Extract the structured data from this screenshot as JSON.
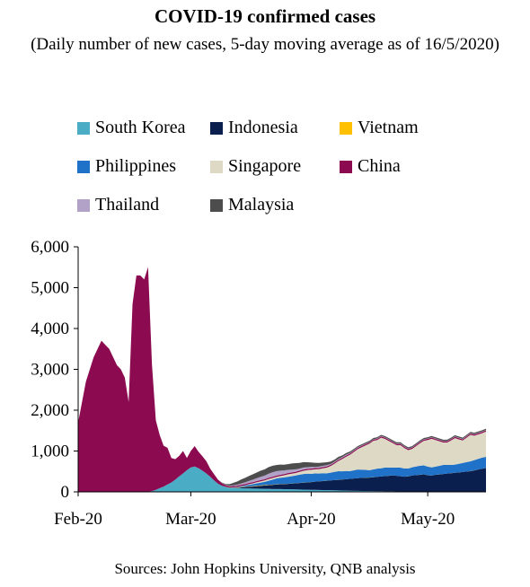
{
  "title": "COVID-19 confirmed cases",
  "subtitle": "(Daily number of new cases, 5-day moving average as of 16/5/2020)",
  "source": "Sources: John Hopkins University, QNB analysis",
  "chart_data": {
    "type": "area",
    "stacked": true,
    "ylim": [
      0,
      6000
    ],
    "yticks": [
      0,
      1000,
      2000,
      3000,
      4000,
      5000,
      6000
    ],
    "ytick_labels": [
      "0",
      "1,000",
      "2,000",
      "3,000",
      "4,000",
      "5,000",
      "6,000"
    ],
    "xtick_labels": [
      "Feb-20",
      "Mar-20",
      "Apr-20",
      "May-20"
    ],
    "xtick_positions": [
      0,
      29,
      60,
      90
    ],
    "x_start": 0,
    "x_end": 105,
    "legend_position": "top",
    "series": [
      {
        "name": "South Korea",
        "color": "#4bacc6",
        "values": [
          0,
          0,
          0,
          0,
          0,
          0,
          0,
          0,
          0,
          0,
          0,
          0,
          0,
          0,
          0,
          0,
          0,
          0,
          5,
          20,
          50,
          90,
          130,
          180,
          230,
          300,
          380,
          450,
          530,
          600,
          620,
          580,
          520,
          450,
          370,
          280,
          200,
          150,
          120,
          100,
          95,
          90,
          90,
          85,
          85,
          80,
          80,
          78,
          75,
          75,
          70,
          70,
          68,
          65,
          65,
          62,
          60,
          58,
          55,
          52,
          50,
          50,
          48,
          45,
          43,
          40,
          38,
          35,
          33,
          30,
          28,
          26,
          25,
          23,
          22,
          20,
          18,
          17,
          16,
          15,
          14,
          13,
          12,
          12,
          11,
          10,
          10,
          9,
          9,
          8,
          8,
          8,
          7,
          7,
          7,
          7,
          7,
          6,
          6,
          6,
          6,
          6,
          6,
          6,
          6,
          6
        ]
      },
      {
        "name": "Indonesia",
        "color": "#0b1f4f",
        "values": [
          0,
          0,
          0,
          0,
          0,
          0,
          0,
          0,
          0,
          0,
          0,
          0,
          0,
          0,
          0,
          0,
          0,
          0,
          0,
          0,
          0,
          0,
          0,
          0,
          0,
          0,
          0,
          0,
          0,
          0,
          0,
          0,
          0,
          0,
          0,
          0,
          0,
          0,
          0,
          0,
          5,
          10,
          20,
          30,
          40,
          50,
          60,
          70,
          80,
          90,
          100,
          110,
          120,
          125,
          130,
          140,
          150,
          160,
          170,
          180,
          190,
          200,
          210,
          220,
          230,
          240,
          250,
          260,
          270,
          280,
          290,
          300,
          310,
          320,
          325,
          330,
          340,
          350,
          360,
          370,
          380,
          390,
          380,
          370,
          360,
          370,
          390,
          400,
          410,
          420,
          400,
          390,
          410,
          420,
          430,
          440,
          450,
          460,
          470,
          480,
          490,
          500,
          520,
          540,
          560,
          580
        ]
      },
      {
        "name": "Vietnam",
        "color": "#ffc000",
        "values": [
          0,
          0,
          0,
          0,
          0,
          0,
          0,
          0,
          0,
          0,
          0,
          0,
          0,
          0,
          0,
          0,
          0,
          0,
          0,
          0,
          0,
          0,
          0,
          0,
          0,
          0,
          0,
          0,
          0,
          0,
          0,
          0,
          0,
          0,
          0,
          0,
          0,
          2,
          3,
          4,
          5,
          6,
          7,
          8,
          9,
          10,
          10,
          10,
          9,
          8,
          7,
          6,
          5,
          4,
          3,
          3,
          2,
          2,
          2,
          2,
          1,
          1,
          1,
          1,
          1,
          1,
          1,
          1,
          1,
          1,
          1,
          1,
          1,
          1,
          1,
          1,
          1,
          1,
          1,
          1,
          1,
          1,
          1,
          1,
          1,
          1,
          1,
          1,
          1,
          1,
          1,
          1,
          1,
          1,
          1,
          1,
          1,
          1,
          1,
          1,
          1,
          1,
          1,
          1,
          1,
          1
        ]
      },
      {
        "name": "Philippines",
        "color": "#1f72c7",
        "values": [
          0,
          0,
          0,
          0,
          0,
          0,
          0,
          0,
          0,
          0,
          0,
          0,
          0,
          0,
          0,
          0,
          0,
          0,
          0,
          0,
          0,
          0,
          0,
          0,
          0,
          0,
          0,
          0,
          0,
          0,
          0,
          0,
          0,
          0,
          0,
          0,
          0,
          0,
          0,
          0,
          5,
          10,
          20,
          30,
          40,
          50,
          60,
          70,
          80,
          100,
          120,
          140,
          150,
          160,
          170,
          180,
          190,
          200,
          210,
          210,
          200,
          200,
          190,
          190,
          180,
          190,
          200,
          210,
          200,
          200,
          190,
          200,
          210,
          200,
          190,
          180,
          190,
          200,
          200,
          210,
          200,
          190,
          200,
          210,
          200,
          190,
          200,
          210,
          220,
          220,
          210,
          200,
          200,
          210,
          220,
          210,
          200,
          200,
          210,
          220,
          230,
          240,
          250,
          260,
          270,
          270
        ]
      },
      {
        "name": "Singapore",
        "color": "#ddd9c4",
        "values": [
          0,
          0,
          0,
          0,
          0,
          0,
          0,
          0,
          0,
          0,
          0,
          0,
          0,
          0,
          0,
          0,
          0,
          0,
          0,
          0,
          0,
          0,
          0,
          0,
          0,
          0,
          0,
          0,
          0,
          0,
          0,
          0,
          0,
          0,
          0,
          0,
          0,
          0,
          0,
          0,
          3,
          5,
          8,
          10,
          15,
          20,
          25,
          30,
          35,
          40,
          40,
          40,
          45,
          50,
          60,
          60,
          60,
          70,
          80,
          90,
          100,
          100,
          110,
          120,
          140,
          160,
          200,
          250,
          300,
          350,
          400,
          450,
          500,
          550,
          600,
          650,
          700,
          700,
          750,
          700,
          650,
          600,
          550,
          550,
          500,
          450,
          450,
          500,
          550,
          600,
          650,
          700,
          650,
          600,
          550,
          550,
          600,
          650,
          600,
          550,
          600,
          650,
          600,
          600,
          600,
          620
        ]
      },
      {
        "name": "China",
        "color": "#8b0a50",
        "values": [
          1700,
          2200,
          2700,
          3000,
          3300,
          3500,
          3700,
          3600,
          3500,
          3300,
          3100,
          3000,
          2800,
          2200,
          4600,
          5300,
          5300,
          5200,
          5500,
          3100,
          1700,
          1300,
          1000,
          900,
          600,
          500,
          500,
          550,
          300,
          400,
          500,
          400,
          350,
          300,
          200,
          150,
          100,
          60,
          40,
          30,
          30,
          30,
          30,
          30,
          30,
          30,
          30,
          30,
          30,
          30,
          30,
          30,
          30,
          30,
          30,
          30,
          30,
          30,
          30,
          30,
          30,
          30,
          30,
          30,
          30,
          30,
          30,
          30,
          30,
          30,
          30,
          30,
          30,
          30,
          30,
          30,
          30,
          30,
          30,
          30,
          30,
          30,
          30,
          30,
          30,
          30,
          30,
          30,
          30,
          30,
          30,
          30,
          30,
          30,
          30,
          30,
          30,
          30,
          30,
          30,
          30,
          30,
          30,
          30,
          30,
          30
        ]
      },
      {
        "name": "Thailand",
        "color": "#b2a2c7",
        "values": [
          0,
          0,
          0,
          0,
          0,
          0,
          0,
          0,
          0,
          0,
          0,
          0,
          0,
          0,
          0,
          0,
          0,
          0,
          0,
          0,
          0,
          0,
          0,
          0,
          0,
          0,
          0,
          0,
          0,
          0,
          0,
          0,
          0,
          0,
          0,
          0,
          0,
          5,
          10,
          15,
          20,
          25,
          30,
          40,
          50,
          60,
          70,
          80,
          90,
          100,
          110,
          110,
          100,
          90,
          80,
          70,
          60,
          50,
          50,
          40,
          40,
          30,
          30,
          30,
          30,
          20,
          20,
          20,
          20,
          20,
          15,
          15,
          15,
          10,
          10,
          10,
          10,
          10,
          10,
          10,
          10,
          10,
          10,
          10,
          10,
          10,
          10,
          10,
          10,
          10,
          10,
          10,
          10,
          10,
          10,
          10,
          10,
          10,
          10,
          10,
          10,
          10,
          10,
          10,
          10,
          10
        ]
      },
      {
        "name": "Malaysia",
        "color": "#4d4d4d",
        "values": [
          0,
          0,
          0,
          0,
          0,
          0,
          0,
          0,
          0,
          0,
          0,
          0,
          0,
          0,
          0,
          0,
          0,
          0,
          0,
          0,
          0,
          0,
          0,
          0,
          0,
          0,
          0,
          0,
          0,
          0,
          0,
          0,
          0,
          0,
          0,
          0,
          0,
          10,
          20,
          40,
          60,
          80,
          100,
          110,
          120,
          130,
          140,
          150,
          150,
          160,
          160,
          150,
          150,
          140,
          140,
          150,
          150,
          140,
          130,
          120,
          110,
          100,
          90,
          80,
          70,
          60,
          50,
          50,
          40,
          40,
          35,
          30,
          30,
          30,
          30,
          30,
          30,
          30,
          30,
          30,
          30,
          30,
          30,
          30,
          30,
          30,
          30,
          30,
          30,
          30,
          30,
          30,
          30,
          30,
          30,
          30,
          30,
          30,
          30,
          30,
          30,
          30,
          30,
          30,
          30,
          30
        ]
      }
    ]
  }
}
